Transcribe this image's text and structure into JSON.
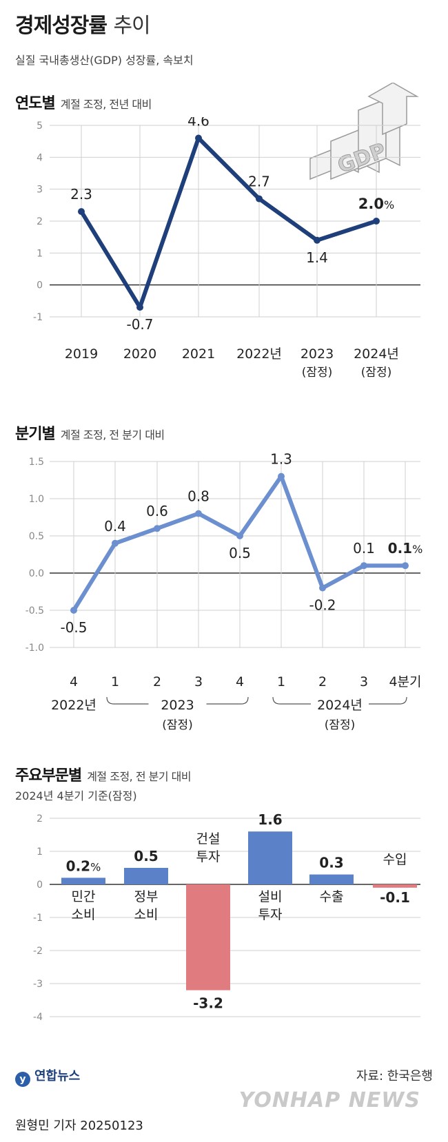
{
  "header": {
    "title_bold": "경제성장률",
    "title_light": "추이",
    "subtitle": "실질 국내총생산(GDP) 성장률, 속보치",
    "gdp_icon_text": "GDP"
  },
  "colors": {
    "annual_line": "#1f3f7a",
    "quarterly_line": "#6b8fcf",
    "bar_positive": "#5b82c9",
    "bar_negative": "#e07b80",
    "grid": "#cfcfcf",
    "zero_line": "#333333"
  },
  "chart_data": [
    {
      "type": "line",
      "title": "연도별",
      "note": "계절 조정, 전년 대비",
      "categories": [
        "2019",
        "2020",
        "2021",
        "2022년",
        "2023",
        "2024년"
      ],
      "category_sublabels": [
        "",
        "",
        "",
        "",
        "(잠정)",
        "(잠정)"
      ],
      "values": [
        2.3,
        -0.7,
        4.6,
        2.7,
        1.4,
        2.0
      ],
      "value_labels": [
        "2.3",
        "-0.7",
        "4.6",
        "2.7",
        "1.4",
        "2.0"
      ],
      "last_unit": "%",
      "yticks": [
        "5",
        "4",
        "3",
        "2",
        "1",
        "0",
        "-1"
      ],
      "ylim": [
        -1,
        5
      ],
      "grid": true
    },
    {
      "type": "line",
      "title": "분기별",
      "note": "계절 조정, 전 분기 대비",
      "categories": [
        "4",
        "1",
        "2",
        "3",
        "4",
        "1",
        "2",
        "3",
        "4분기"
      ],
      "year_groups": [
        {
          "label": "2022년",
          "sublabel": ""
        },
        {
          "label": "2023",
          "sublabel": "(잠정)"
        },
        {
          "label": "2024년",
          "sublabel": "(잠정)"
        }
      ],
      "values": [
        -0.5,
        0.4,
        0.6,
        0.8,
        0.5,
        1.3,
        -0.2,
        0.1,
        0.1
      ],
      "value_labels": [
        "-0.5",
        "0.4",
        "0.6",
        "0.8",
        "0.5",
        "1.3",
        "-0.2",
        "0.1",
        "0.1"
      ],
      "last_unit": "%",
      "yticks": [
        "1.5",
        "1.0",
        "0.5",
        "0.0",
        "-0.5",
        "-1.0"
      ],
      "ylim": [
        -1.0,
        1.5
      ],
      "grid": true
    },
    {
      "type": "bar",
      "title": "주요부문별",
      "note": "계절 조정, 전 분기 대비",
      "subnote": "2024년 4분기 기준(잠정)",
      "categories": [
        [
          "민간",
          "소비"
        ],
        [
          "정부",
          "소비"
        ],
        [
          "건설",
          "투자"
        ],
        [
          "설비",
          "투자"
        ],
        [
          "수출"
        ],
        [
          "수입"
        ]
      ],
      "values": [
        0.2,
        0.5,
        -3.2,
        1.6,
        0.3,
        -0.1
      ],
      "value_labels": [
        "0.2",
        "0.5",
        "-3.2",
        "1.6",
        "0.3",
        "-0.1"
      ],
      "first_unit": "%",
      "yticks": [
        "2",
        "1",
        "0",
        "-1",
        "-2",
        "-3",
        "-4"
      ],
      "ylim": [
        -4,
        2
      ],
      "grid": true
    }
  ],
  "footer": {
    "logo": "연합뉴스",
    "source": "자료: 한국은행",
    "watermark": "YONHAP NEWS",
    "byline": "원형민 기자  20250123"
  }
}
